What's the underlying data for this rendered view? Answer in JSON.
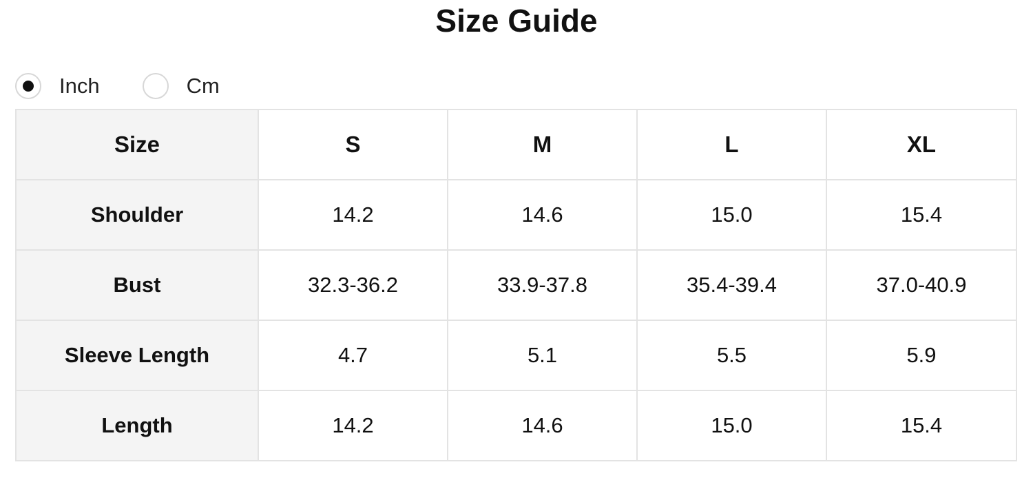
{
  "title": "Size Guide",
  "units": {
    "options": [
      {
        "label": "Inch",
        "selected": true
      },
      {
        "label": "Cm",
        "selected": false
      }
    ]
  },
  "table": {
    "corner_label": "Size",
    "columns": [
      "S",
      "M",
      "L",
      "XL"
    ],
    "rows": [
      {
        "label": "Shoulder",
        "values": [
          "14.2",
          "14.6",
          "15.0",
          "15.4"
        ]
      },
      {
        "label": "Bust",
        "values": [
          "32.3-36.2",
          "33.9-37.8",
          "35.4-39.4",
          "37.0-40.9"
        ]
      },
      {
        "label": "Sleeve Length",
        "values": [
          "4.7",
          "5.1",
          "5.5",
          "5.9"
        ]
      },
      {
        "label": "Length",
        "values": [
          "14.2",
          "14.6",
          "15.0",
          "15.4"
        ]
      }
    ]
  },
  "colors": {
    "header_bg": "#f4f4f4",
    "border": "#e3e3e3",
    "text": "#111111"
  }
}
